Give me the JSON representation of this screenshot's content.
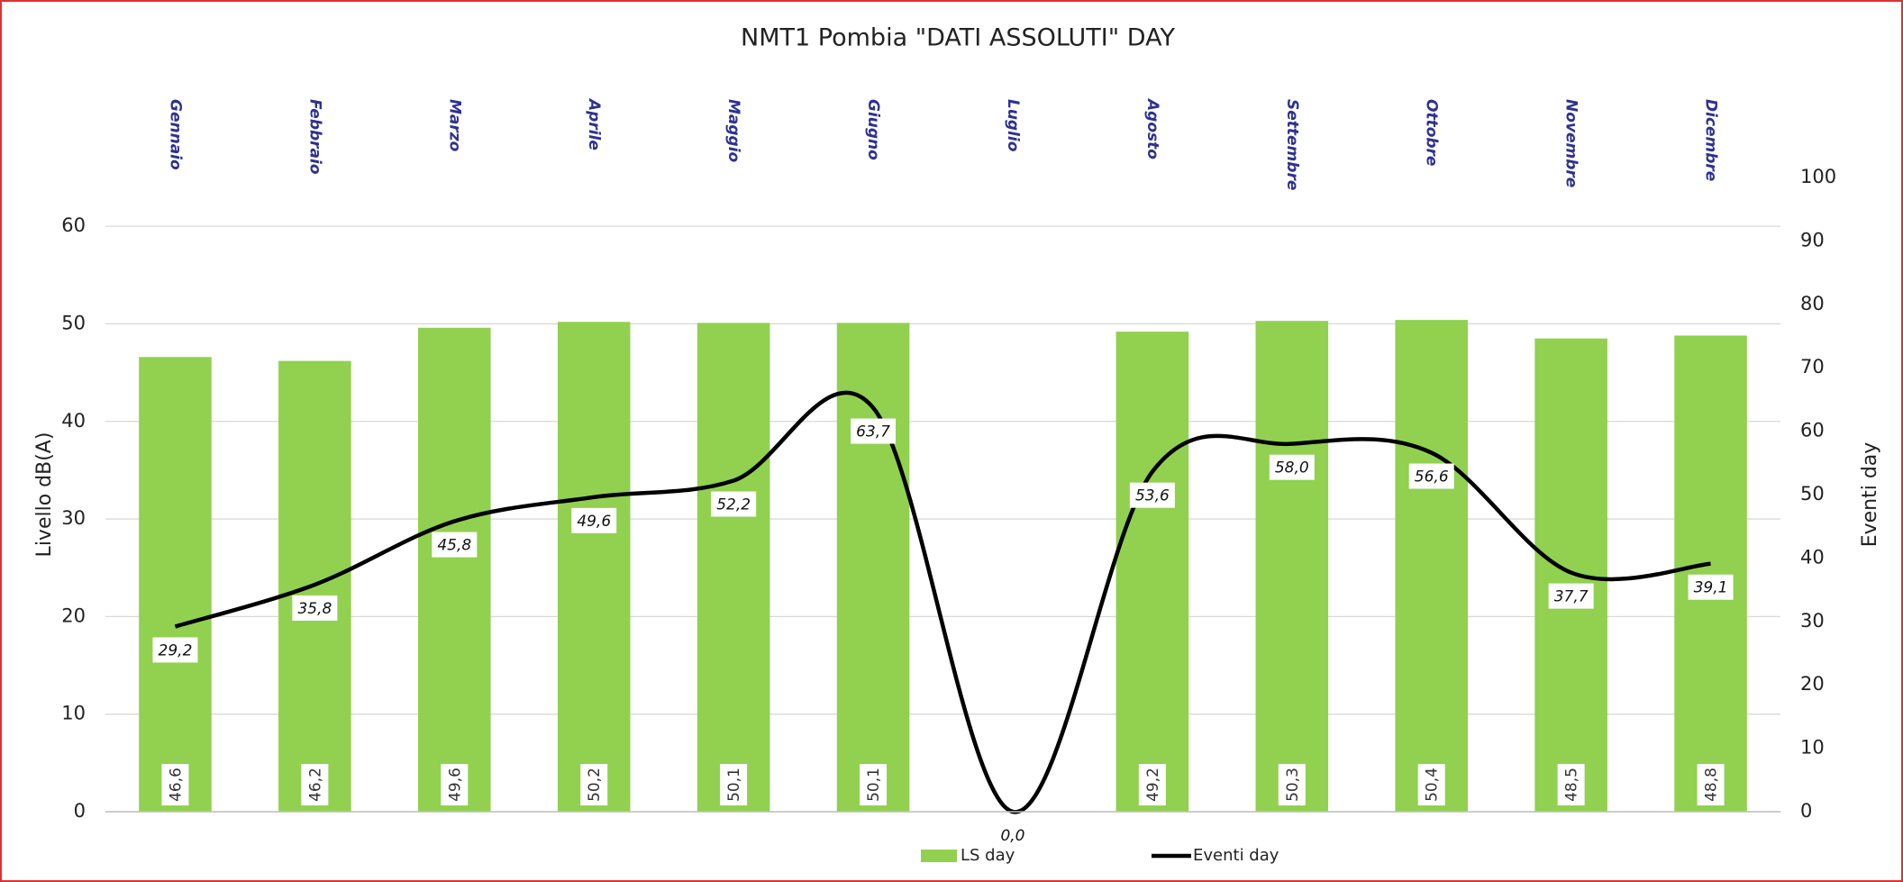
{
  "chart_data": {
    "type": "bar-line",
    "title": "NMT1 Pombia \"DATI ASSOLUTI\" DAY",
    "y_label": "Livello dB(A)",
    "y2_label": "Eventi day",
    "categories": [
      "Gennaio",
      "Febbraio",
      "Marzo",
      "Aprile",
      "Maggio",
      "Giugno",
      "Luglio",
      "Agosto",
      "Settembre",
      "Ottobre",
      "Novembre",
      "Dicembre"
    ],
    "series": [
      {
        "name": "LS day",
        "type": "bar",
        "color": "#92d050",
        "values": [
          46.6,
          46.2,
          49.6,
          50.2,
          50.1,
          50.1,
          null,
          49.2,
          50.3,
          50.4,
          48.5,
          48.8
        ],
        "value_labels": [
          "46,6",
          "46,2",
          "49,6",
          "50,2",
          "50,1",
          "50,1",
          null,
          "49,2",
          "50,3",
          "50,4",
          "48,5",
          "48,8"
        ]
      },
      {
        "name": "Eventi day",
        "type": "line",
        "color": "#000000",
        "axis": "y2",
        "smooth": true,
        "values": [
          29.2,
          35.8,
          45.8,
          49.6,
          52.2,
          63.7,
          0.0,
          53.6,
          58.0,
          56.6,
          37.7,
          39.1
        ],
        "value_labels": [
          "29,2",
          "35,8",
          "45,8",
          "49,6",
          "52,2",
          "63,7",
          "0,0",
          "53,6",
          "58,0",
          "56,6",
          "37,7",
          "39,1"
        ]
      }
    ],
    "ylim": [
      0,
      65
    ],
    "yticks": [
      0,
      10,
      20,
      30,
      40,
      50,
      60
    ],
    "y2lim": [
      0,
      100
    ],
    "y2ticks": [
      0,
      10,
      20,
      30,
      40,
      50,
      60,
      70,
      80,
      90,
      100
    ],
    "grid": true,
    "legend": "bottom"
  }
}
